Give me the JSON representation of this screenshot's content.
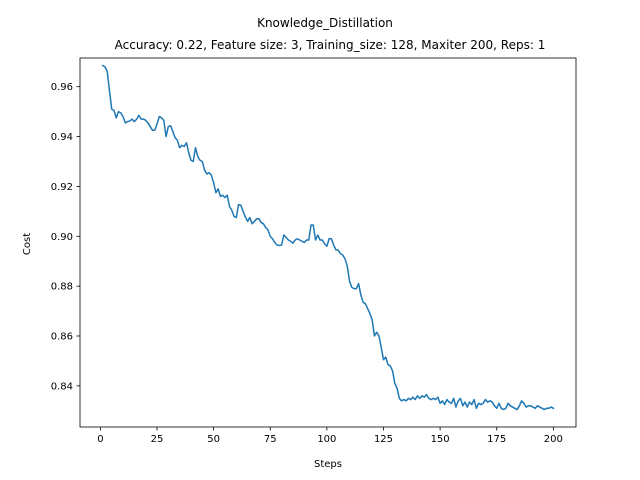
{
  "chart_data": {
    "type": "line",
    "title": "Knowledge_Distillation",
    "subtitle": "Accuracy: 0.22, Feature size: 3, Training_size: 128, Maxiter 200, Reps: 1",
    "xlabel": "Steps",
    "ylabel": "Cost",
    "xlim": [
      -9,
      210
    ],
    "ylim": [
      0.8235,
      0.9715
    ],
    "xticks": [
      0,
      25,
      50,
      75,
      100,
      125,
      150,
      175,
      200
    ],
    "yticks": [
      0.84,
      0.86,
      0.88,
      0.9,
      0.92,
      0.94,
      0.96
    ],
    "xtick_labels": [
      "0",
      "25",
      "50",
      "75",
      "100",
      "125",
      "150",
      "175",
      "200"
    ],
    "ytick_labels": [
      "0.84",
      "0.86",
      "0.88",
      "0.90",
      "0.92",
      "0.94",
      "0.96"
    ],
    "grid": false,
    "legend": false,
    "color": "#1f77b4",
    "series": [
      {
        "x": [
          1,
          2,
          3,
          4,
          5,
          6,
          7,
          8,
          9,
          10,
          11,
          12,
          13,
          14,
          15,
          16,
          17,
          18,
          19,
          20,
          21,
          22,
          23,
          24,
          25,
          26,
          27,
          28,
          29,
          30,
          31,
          32,
          33,
          34,
          35,
          36,
          37,
          38,
          39,
          40,
          41,
          42,
          43,
          44,
          45,
          46,
          47,
          48,
          49,
          50,
          51,
          52,
          53,
          54,
          55,
          56,
          57,
          58,
          59,
          60,
          61,
          62,
          63,
          64,
          65,
          66,
          67,
          68,
          69,
          70,
          71,
          72,
          73,
          74,
          75,
          76,
          77,
          78,
          79,
          80,
          81,
          82,
          83,
          84,
          85,
          86,
          87,
          88,
          89,
          90,
          91,
          92,
          93,
          94,
          95,
          96,
          97,
          98,
          99,
          100,
          101,
          102,
          103,
          104,
          105,
          106,
          107,
          108,
          109,
          110,
          111,
          112,
          113,
          114,
          115,
          116,
          117,
          118,
          119,
          120,
          121,
          122,
          123,
          124,
          125,
          126,
          127,
          128,
          129,
          130,
          131,
          132,
          133,
          134,
          135,
          136,
          137,
          138,
          139,
          140,
          141,
          142,
          143,
          144,
          145,
          146,
          147,
          148,
          149,
          150,
          151,
          152,
          153,
          154,
          155,
          156,
          157,
          158,
          159,
          160,
          161,
          162,
          163,
          164,
          165,
          166,
          167,
          168,
          169,
          170,
          171,
          172,
          173,
          174,
          175,
          176,
          177,
          178,
          179,
          180,
          181,
          182,
          183,
          184,
          185,
          186,
          187,
          188,
          189,
          190,
          191,
          192,
          193,
          194,
          195,
          196,
          197,
          198,
          199,
          200
        ],
        "values": [
          0.9685,
          0.968,
          0.9662,
          0.9585,
          0.951,
          0.9505,
          0.9475,
          0.95,
          0.9495,
          0.948,
          0.9455,
          0.946,
          0.9462,
          0.947,
          0.946,
          0.947,
          0.9485,
          0.947,
          0.947,
          0.9465,
          0.9455,
          0.944,
          0.9425,
          0.9425,
          0.945,
          0.948,
          0.9475,
          0.9465,
          0.94,
          0.944,
          0.9443,
          0.942,
          0.9395,
          0.9385,
          0.9355,
          0.9365,
          0.936,
          0.9375,
          0.9335,
          0.9305,
          0.93,
          0.9355,
          0.932,
          0.9305,
          0.93,
          0.9265,
          0.925,
          0.9255,
          0.9245,
          0.9215,
          0.9175,
          0.919,
          0.916,
          0.9165,
          0.9155,
          0.9165,
          0.912,
          0.9105,
          0.908,
          0.9075,
          0.9127,
          0.9125,
          0.91,
          0.9078,
          0.906,
          0.9075,
          0.905,
          0.906,
          0.907,
          0.907,
          0.9055,
          0.905,
          0.9035,
          0.9025,
          0.9,
          0.899,
          0.8975,
          0.8965,
          0.8963,
          0.8965,
          0.9005,
          0.8995,
          0.8985,
          0.898,
          0.8972,
          0.8985,
          0.899,
          0.8985,
          0.898,
          0.8975,
          0.8985,
          0.8985,
          0.9045,
          0.9045,
          0.8985,
          0.9005,
          0.8985,
          0.8985,
          0.897,
          0.896,
          0.899,
          0.899,
          0.8965,
          0.8945,
          0.8945,
          0.893,
          0.8925,
          0.891,
          0.888,
          0.882,
          0.8795,
          0.879,
          0.879,
          0.881,
          0.8765,
          0.8735,
          0.873,
          0.871,
          0.869,
          0.8665,
          0.86,
          0.8615,
          0.86,
          0.8555,
          0.8505,
          0.8515,
          0.8485,
          0.848,
          0.846,
          0.841,
          0.839,
          0.835,
          0.834,
          0.8345,
          0.834,
          0.835,
          0.8345,
          0.8355,
          0.8345,
          0.836,
          0.835,
          0.836,
          0.8355,
          0.8365,
          0.835,
          0.8345,
          0.835,
          0.8345,
          0.8355,
          0.833,
          0.834,
          0.8325,
          0.8345,
          0.8335,
          0.833,
          0.835,
          0.8315,
          0.834,
          0.835,
          0.832,
          0.8335,
          0.8315,
          0.8335,
          0.8325,
          0.8345,
          0.831,
          0.833,
          0.8325,
          0.833,
          0.8345,
          0.8335,
          0.834,
          0.8335,
          0.832,
          0.831,
          0.833,
          0.831,
          0.8305,
          0.831,
          0.833,
          0.832,
          0.8315,
          0.831,
          0.8305,
          0.832,
          0.834,
          0.833,
          0.8315,
          0.832,
          0.832,
          0.8315,
          0.831,
          0.832,
          0.8315,
          0.831,
          0.8305,
          0.831,
          0.831,
          0.8315,
          0.831
        ]
      }
    ]
  }
}
